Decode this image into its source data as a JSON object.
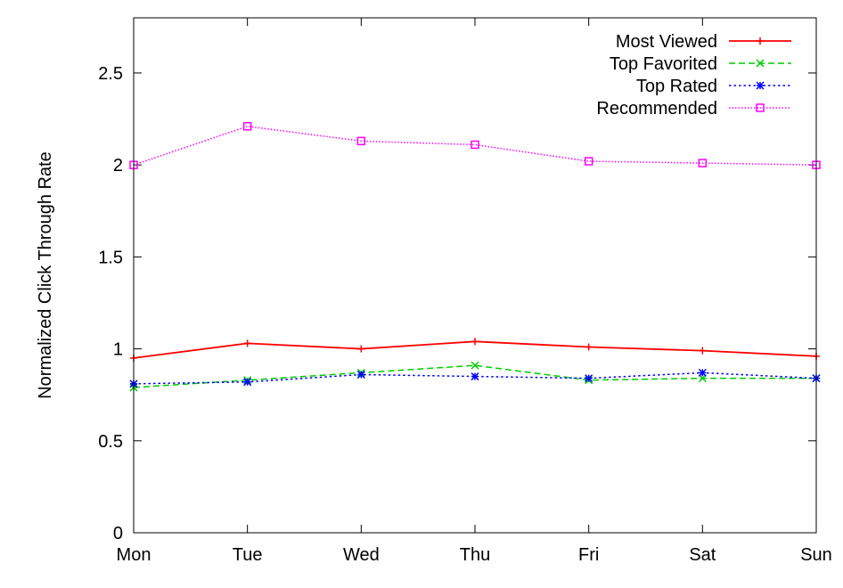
{
  "chart_data": {
    "type": "line",
    "title": "",
    "xlabel": "",
    "ylabel": "Normalized Click Through Rate",
    "categories": [
      "Mon",
      "Tue",
      "Wed",
      "Thu",
      "Fri",
      "Sat",
      "Sun"
    ],
    "ylim": [
      0,
      2.8
    ],
    "yticks": [
      0,
      0.5,
      1,
      1.5,
      2,
      2.5
    ],
    "ytick_labels": [
      "0",
      "0.5",
      "1",
      "1.5",
      "2",
      "2.5"
    ],
    "grid": false,
    "legend_position": "top-right",
    "series": [
      {
        "name": "Most Viewed",
        "color": "#ff0000",
        "dash": "solid",
        "marker": "plus",
        "values": [
          0.95,
          1.03,
          1.0,
          1.04,
          1.01,
          0.99,
          0.96
        ]
      },
      {
        "name": "Top Favorited",
        "color": "#00cc00",
        "dash": "dashed",
        "marker": "x",
        "values": [
          0.79,
          0.83,
          0.87,
          0.91,
          0.83,
          0.84,
          0.84
        ]
      },
      {
        "name": "Top Rated",
        "color": "#0000ff",
        "dash": "dotted",
        "marker": "star",
        "values": [
          0.81,
          0.82,
          0.86,
          0.85,
          0.84,
          0.87,
          0.84
        ]
      },
      {
        "name": "Recommended",
        "color": "#ff00ff",
        "dash": "fine-dotted",
        "marker": "square",
        "values": [
          2.0,
          2.21,
          2.13,
          2.11,
          2.02,
          2.01,
          2.0
        ]
      }
    ]
  }
}
